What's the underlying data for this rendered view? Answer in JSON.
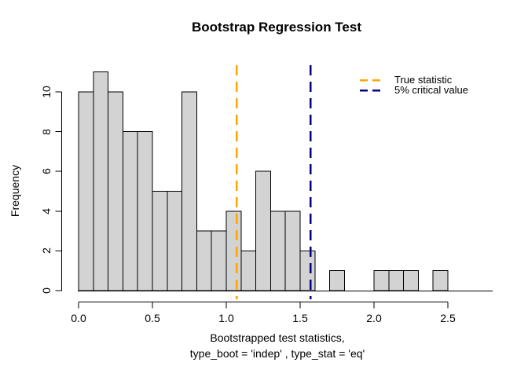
{
  "chart_data": {
    "type": "bar",
    "chart_kind": "histogram",
    "title": "Bootstrap Regression Test",
    "ylabel": "Frequency",
    "xlabel_line1": "Bootstrapped test statistics,",
    "xlabel_line2": "type_boot = 'indep' , type_stat = 'eq'",
    "bin_start": 0.0,
    "bin_width": 0.1,
    "counts": [
      10,
      11,
      10,
      8,
      8,
      5,
      5,
      10,
      3,
      3,
      4,
      2,
      6,
      4,
      4,
      2,
      0,
      1,
      0,
      0,
      1,
      1,
      1,
      0,
      1
    ],
    "total_frequency": 100,
    "xlim": [
      0.0,
      2.5
    ],
    "ylim": [
      0,
      11
    ],
    "x_ticks": [
      0.0,
      0.5,
      1.0,
      1.5,
      2.0,
      2.5
    ],
    "x_tick_labels": [
      "0.0",
      "0.5",
      "1.0",
      "1.5",
      "2.0",
      "2.5"
    ],
    "y_ticks": [
      0,
      2,
      4,
      6,
      8,
      10
    ],
    "y_tick_labels": [
      "0",
      "2",
      "4",
      "6",
      "8",
      "10"
    ],
    "grid": false,
    "bar_fill": "#d3d3d3",
    "bar_border": "#000000",
    "axis_color": "#000000",
    "vlines": [
      {
        "x": 1.07,
        "color": "#ffa500",
        "label": "True statistic",
        "line_style": "dashed",
        "name": "true-statistic"
      },
      {
        "x": 1.57,
        "color": "#000080",
        "label": "5% critical value",
        "line_style": "dashed",
        "name": "critical-value"
      }
    ],
    "legend_position": "topright"
  }
}
